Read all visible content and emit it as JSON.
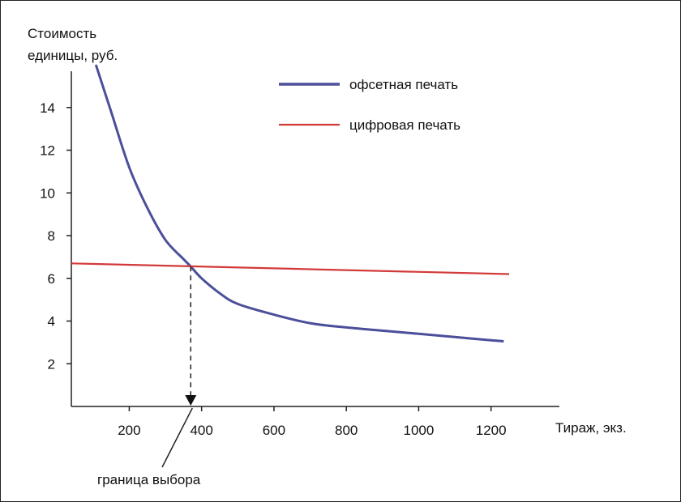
{
  "chart_data": {
    "type": "line",
    "ylabel_line1": "Стоимость",
    "ylabel_line2": "единицы, руб.",
    "xlabel": "Тираж, экз.",
    "xlim": [
      40,
      1250
    ],
    "ylim": [
      0,
      16
    ],
    "x_ticks": [
      200,
      400,
      600,
      800,
      1000,
      1200
    ],
    "y_ticks": [
      2,
      4,
      6,
      8,
      10,
      12,
      14
    ],
    "grid": false,
    "legend_position": "top-right",
    "series": [
      {
        "name": "офсетная печать",
        "color": "#4b4f9a",
        "x": [
          108,
          150,
          200,
          250,
          300,
          350,
          370,
          400,
          450,
          500,
          600,
          700,
          800,
          900,
          1000,
          1100,
          1200,
          1235
        ],
        "y": [
          16.0,
          13.8,
          11.2,
          9.3,
          7.8,
          6.9,
          6.55,
          6.0,
          5.3,
          4.8,
          4.3,
          3.9,
          3.7,
          3.55,
          3.4,
          3.25,
          3.1,
          3.05
        ]
      },
      {
        "name": "цифровая печать",
        "color": "#d23a3a",
        "x": [
          40,
          1250
        ],
        "y": [
          6.7,
          6.2
        ]
      }
    ],
    "annotation": {
      "text": "граница выбора",
      "x": 370
    }
  }
}
